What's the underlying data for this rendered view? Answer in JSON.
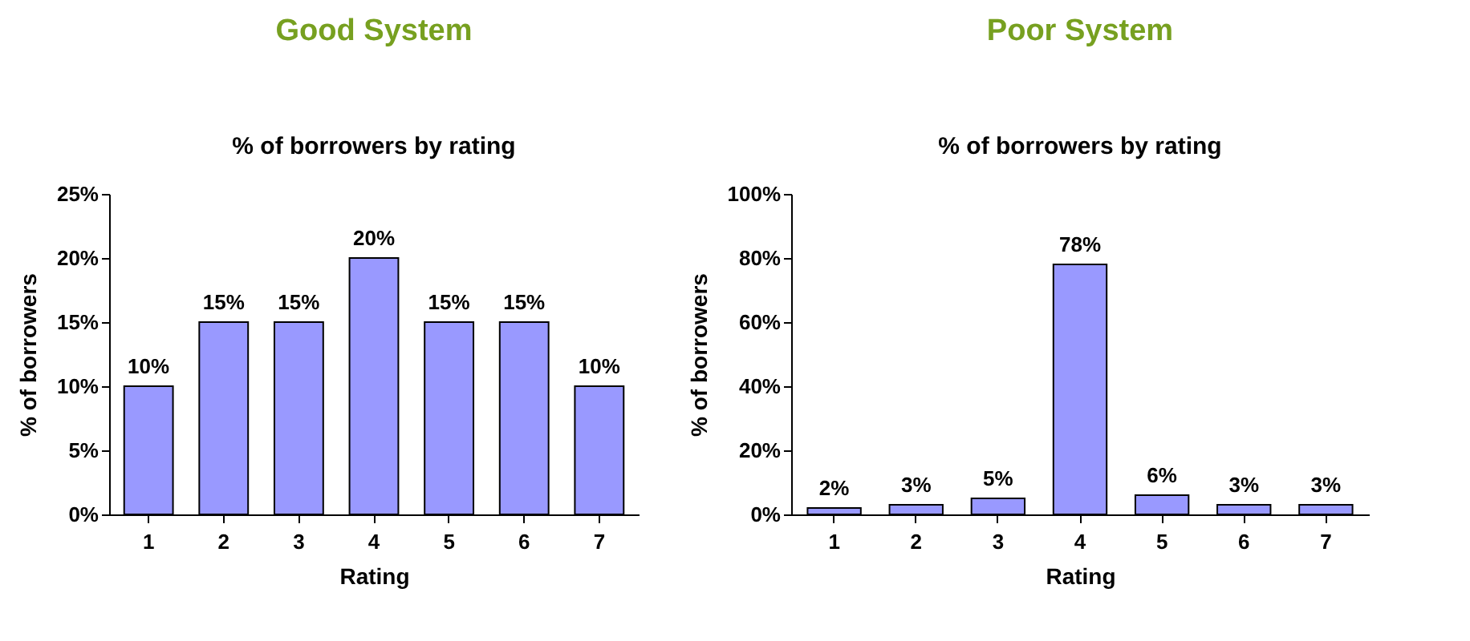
{
  "chart_data": [
    {
      "type": "bar",
      "title": "Good System",
      "subtitle": "% of borrowers by rating",
      "xlabel": "Rating",
      "ylabel": "% of borrowers",
      "categories": [
        "1",
        "2",
        "3",
        "4",
        "5",
        "6",
        "7"
      ],
      "values": [
        10,
        15,
        15,
        20,
        15,
        15,
        10
      ],
      "value_labels": [
        "10%",
        "15%",
        "15%",
        "20%",
        "15%",
        "15%",
        "10%"
      ],
      "color": "#9999ff",
      "ylim": [
        0,
        25
      ],
      "yticks": [
        {
          "value": 0,
          "label": "0%"
        },
        {
          "value": 5,
          "label": "5%"
        },
        {
          "value": 10,
          "label": "10%"
        },
        {
          "value": 15,
          "label": "15%"
        },
        {
          "value": 20,
          "label": "20%"
        },
        {
          "value": 25,
          "label": "25%"
        }
      ]
    },
    {
      "type": "bar",
      "title": "Poor System",
      "subtitle": "% of borrowers by rating",
      "xlabel": "Rating",
      "ylabel": "% of borrowers",
      "categories": [
        "1",
        "2",
        "3",
        "4",
        "5",
        "6",
        "7"
      ],
      "values": [
        2,
        3,
        5,
        78,
        6,
        3,
        3
      ],
      "value_labels": [
        "2%",
        "3%",
        "5%",
        "78%",
        "6%",
        "3%",
        "3%"
      ],
      "color": "#9999ff",
      "ylim": [
        0,
        100
      ],
      "yticks": [
        {
          "value": 0,
          "label": "0%"
        },
        {
          "value": 20,
          "label": "20%"
        },
        {
          "value": 40,
          "label": "40%"
        },
        {
          "value": 60,
          "label": "60%"
        },
        {
          "value": 80,
          "label": "80%"
        },
        {
          "value": 100,
          "label": "100%"
        }
      ]
    }
  ]
}
